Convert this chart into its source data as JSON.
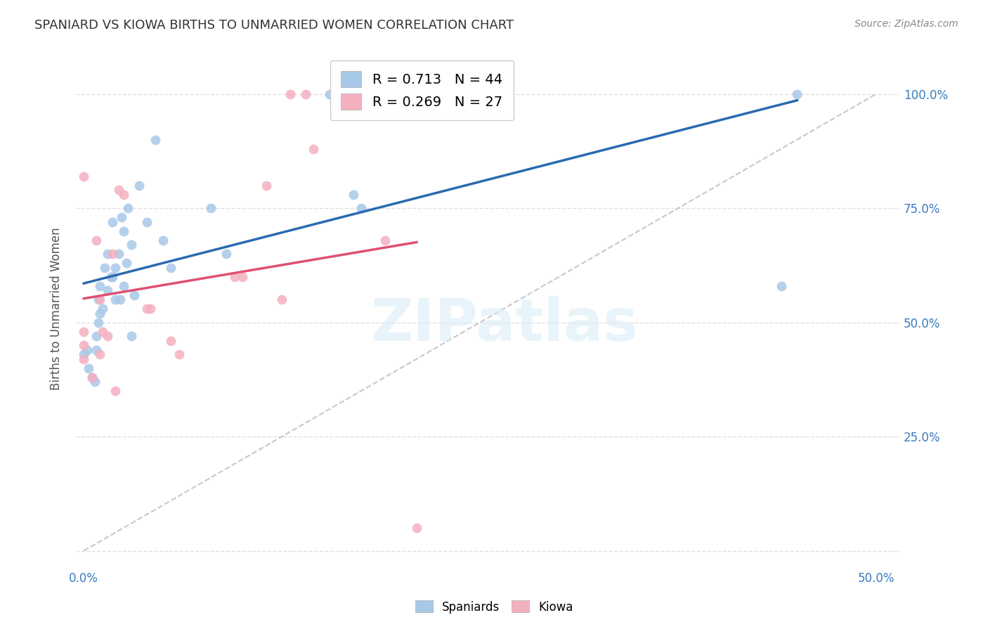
{
  "title": "SPANIARD VS KIOWA BIRTHS TO UNMARRIED WOMEN CORRELATION CHART",
  "source": "Source: ZipAtlas.com",
  "ylabel": "Births to Unmarried Women",
  "xmin": -0.005,
  "xmax": 0.515,
  "ymin": -0.04,
  "ymax": 1.1,
  "spaniards_R": 0.713,
  "spaniards_N": 44,
  "kiowa_R": 0.269,
  "kiowa_N": 27,
  "spaniards_color": "#a8c8e8",
  "kiowa_color": "#f5b0c0",
  "spaniards_line_color": "#2a6ab0",
  "kiowa_line_color": "#e05070",
  "diagonal_color": "#c8c8c8",
  "background_color": "#ffffff",
  "grid_color": "#e0e0e0",
  "spaniards_x": [
    0.0,
    0.002,
    0.003,
    0.005,
    0.007,
    0.008,
    0.008,
    0.009,
    0.009,
    0.01,
    0.01,
    0.012,
    0.013,
    0.015,
    0.015,
    0.017,
    0.018,
    0.018,
    0.02,
    0.02,
    0.022,
    0.023,
    0.024,
    0.025,
    0.025,
    0.027,
    0.028,
    0.03,
    0.03,
    0.032,
    0.035,
    0.04,
    0.045,
    0.05,
    0.055,
    0.08,
    0.09,
    0.155,
    0.16,
    0.165,
    0.17,
    0.175,
    0.44,
    0.45
  ],
  "spaniards_y": [
    0.43,
    0.44,
    0.4,
    0.38,
    0.37,
    0.44,
    0.47,
    0.5,
    0.55,
    0.52,
    0.58,
    0.53,
    0.62,
    0.57,
    0.65,
    0.6,
    0.6,
    0.72,
    0.55,
    0.62,
    0.65,
    0.55,
    0.73,
    0.7,
    0.58,
    0.63,
    0.75,
    0.47,
    0.67,
    0.56,
    0.8,
    0.72,
    0.9,
    0.68,
    0.62,
    0.75,
    0.65,
    1.0,
    1.0,
    1.0,
    0.78,
    0.75,
    0.58,
    1.0
  ],
  "kiowa_x": [
    0.0,
    0.0,
    0.0,
    0.0,
    0.005,
    0.008,
    0.01,
    0.01,
    0.012,
    0.015,
    0.018,
    0.02,
    0.022,
    0.025,
    0.04,
    0.042,
    0.055,
    0.06,
    0.095,
    0.1,
    0.115,
    0.125,
    0.13,
    0.14,
    0.145,
    0.19,
    0.21
  ],
  "kiowa_y": [
    0.42,
    0.45,
    0.48,
    0.82,
    0.38,
    0.68,
    0.43,
    0.55,
    0.48,
    0.47,
    0.65,
    0.35,
    0.79,
    0.78,
    0.53,
    0.53,
    0.46,
    0.43,
    0.6,
    0.6,
    0.8,
    0.55,
    1.0,
    1.0,
    0.88,
    0.68,
    0.05
  ],
  "marker_size": 100,
  "spaniards_line_x0": 0.0,
  "spaniards_line_x1": 0.45,
  "kiowa_line_x0": 0.0,
  "kiowa_line_x1": 0.21
}
